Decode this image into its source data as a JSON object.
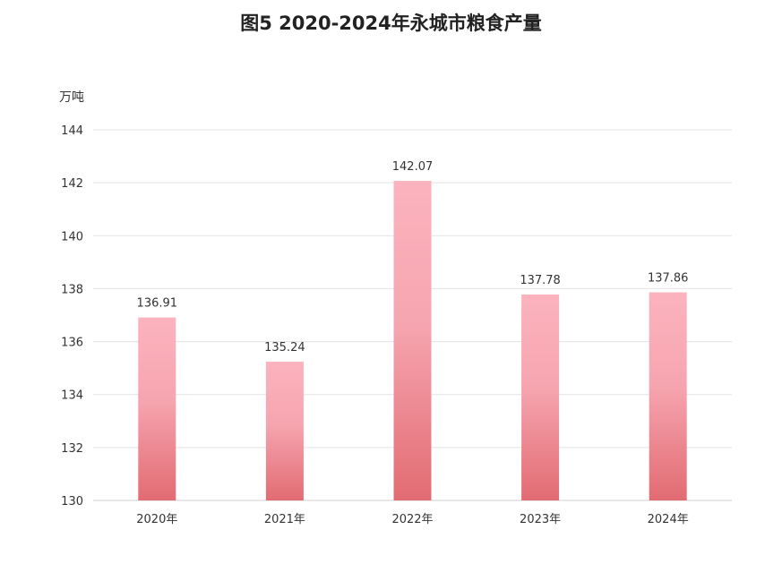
{
  "chart_data": {
    "type": "bar",
    "title": "图5  2020-2024年永城市粮食产量",
    "ylabel": "万吨",
    "categories": [
      "2020年",
      "2021年",
      "2022年",
      "2023年",
      "2024年"
    ],
    "values": [
      136.91,
      135.24,
      142.07,
      137.78,
      137.86
    ],
    "ylim": [
      130,
      144
    ],
    "yticks": [
      130,
      132,
      134,
      136,
      138,
      140,
      142,
      144
    ],
    "grid": true,
    "legend": "none",
    "colors": {
      "bar_top": "#fbb3bd",
      "bar_mid": "#f6a5b0",
      "bar_bottom": "#e26b72",
      "grid": "#e3e3e3",
      "axis": "#cfcfcf",
      "text": "#333333"
    }
  }
}
